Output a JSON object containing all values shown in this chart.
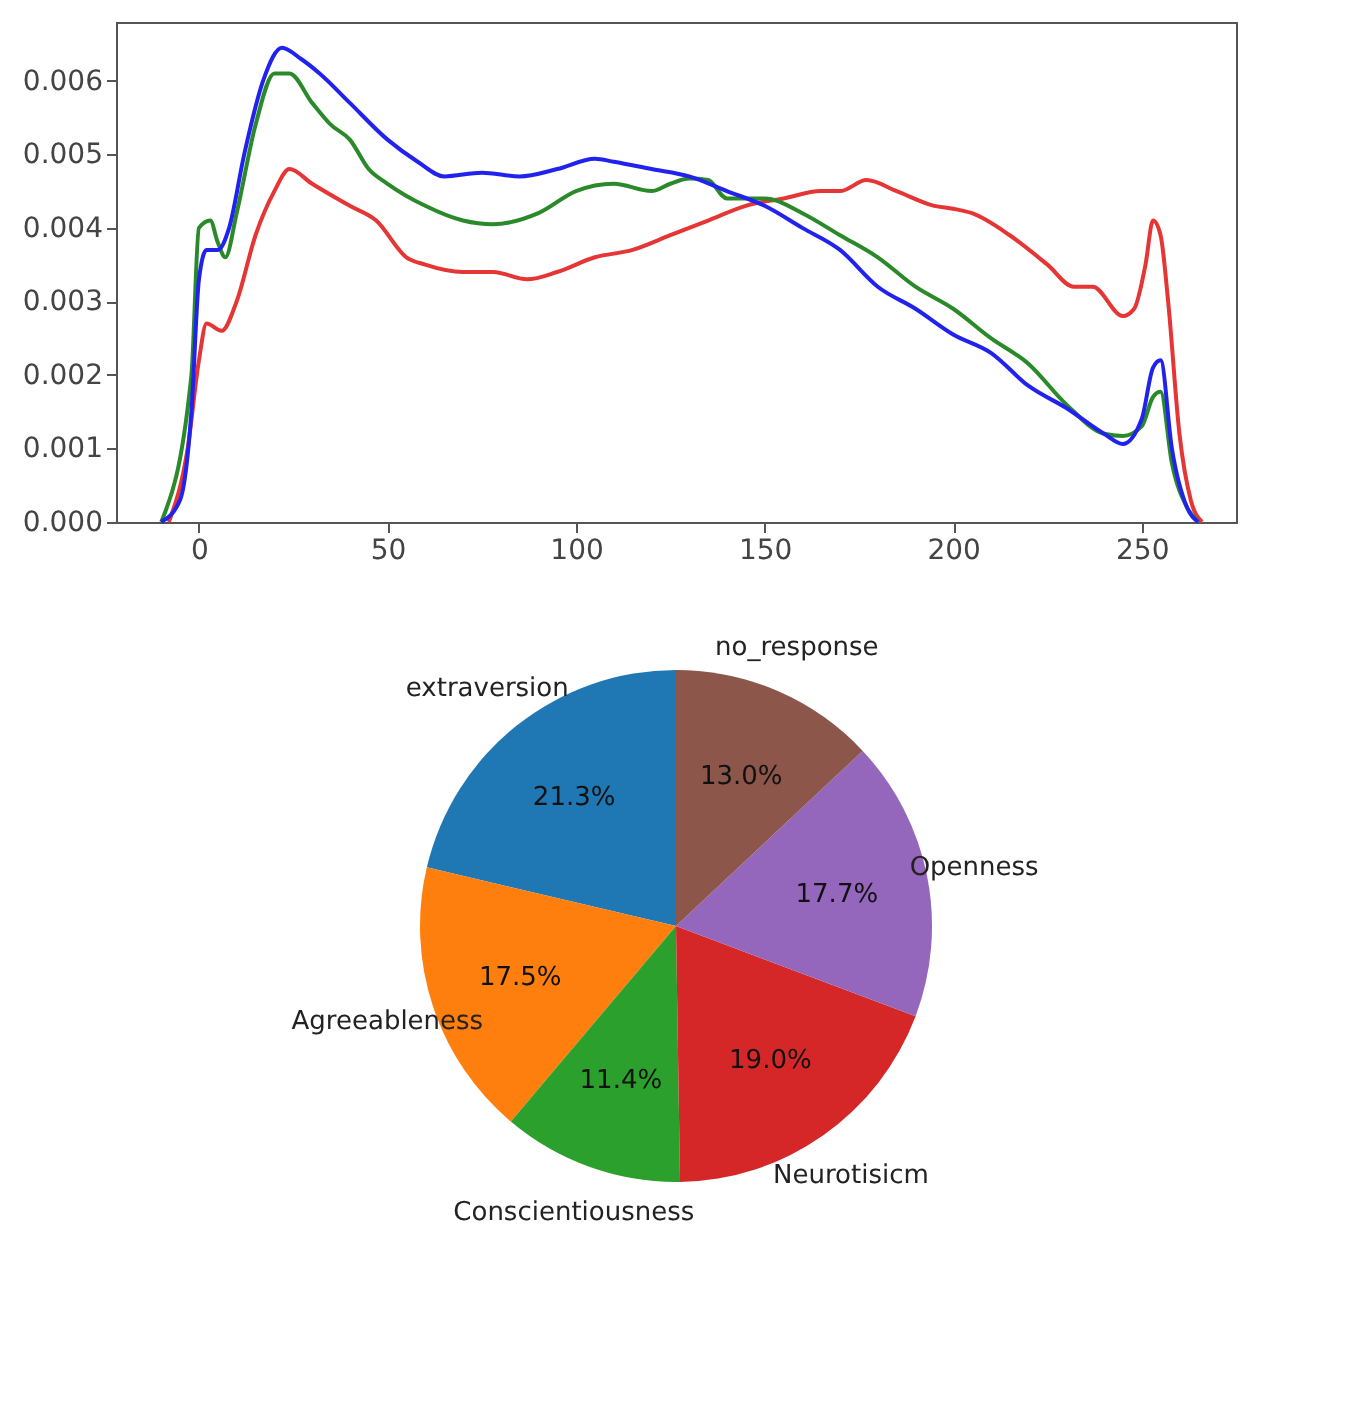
{
  "chart_data": [
    {
      "type": "line",
      "xlim": [
        -22,
        275
      ],
      "ylim": [
        0,
        0.0068
      ],
      "xticks": [
        0,
        50,
        100,
        150,
        200,
        250
      ],
      "yticks": [
        {
          "value": 0,
          "label": "0.000"
        },
        0.001,
        0.002,
        0.003,
        0.004,
        0.005,
        0.006
      ],
      "series": [
        {
          "color": "#e53535",
          "x": [
            -8,
            -3,
            0,
            2,
            6,
            10,
            15,
            20,
            24,
            30,
            40,
            47,
            55,
            60,
            70,
            78,
            87,
            95,
            105,
            115,
            125,
            135,
            145,
            155,
            165,
            170,
            177,
            185,
            195,
            200,
            205,
            215,
            225,
            232,
            237,
            245,
            248,
            251,
            253,
            255,
            257,
            260,
            263,
            266
          ],
          "values": [
            0,
            0.001,
            0.0022,
            0.0027,
            0.0026,
            0.003,
            0.0039,
            0.0045,
            0.0048,
            0.0046,
            0.0043,
            0.0041,
            0.0036,
            0.0035,
            0.0034,
            0.0034,
            0.0033,
            0.0034,
            0.0036,
            0.0037,
            0.0039,
            0.0041,
            0.0043,
            0.0044,
            0.0045,
            0.0045,
            0.00465,
            0.0045,
            0.0043,
            0.00426,
            0.0042,
            0.0039,
            0.0035,
            0.0032,
            0.0032,
            0.0028,
            0.0029,
            0.0035,
            0.0041,
            0.0039,
            0.003,
            0.0012,
            0.0003,
            0
          ]
        },
        {
          "color": "#2a8a2a",
          "x": [
            -10,
            -2,
            0,
            3,
            5,
            7,
            10,
            15,
            20,
            24,
            30,
            35,
            40,
            45,
            50,
            60,
            70,
            78,
            90,
            100,
            110,
            120,
            125,
            130,
            135,
            140,
            150,
            160,
            170,
            180,
            190,
            200,
            210,
            220,
            230,
            240,
            245,
            250,
            253,
            255,
            258,
            262,
            265
          ],
          "values": [
            0,
            0.002,
            0.004,
            0.0041,
            0.0038,
            0.0036,
            0.0042,
            0.0054,
            0.0061,
            0.0061,
            0.0057,
            0.0054,
            0.0052,
            0.0048,
            0.0046,
            0.0043,
            0.0041,
            0.00405,
            0.0042,
            0.0045,
            0.0046,
            0.0045,
            0.0046,
            0.00467,
            0.00465,
            0.0044,
            0.0044,
            0.0042,
            0.0039,
            0.0036,
            0.0032,
            0.0029,
            0.0025,
            0.00215,
            0.0016,
            0.0012,
            0.00117,
            0.0013,
            0.0017,
            0.00177,
            0.0008,
            0.0002,
            0
          ]
        },
        {
          "color": "#2222ee",
          "x": [
            -10,
            -5,
            -2,
            0,
            2,
            5,
            8,
            12,
            17,
            22,
            27,
            32,
            40,
            50,
            58,
            65,
            75,
            85,
            95,
            105,
            110,
            120,
            130,
            140,
            150,
            160,
            170,
            180,
            190,
            200,
            210,
            220,
            230,
            240,
            245,
            250,
            253,
            255,
            258,
            262,
            265
          ],
          "values": [
            0,
            0.0003,
            0.0015,
            0.0033,
            0.0037,
            0.0037,
            0.004,
            0.005,
            0.006,
            0.00645,
            0.0063,
            0.0061,
            0.0057,
            0.0052,
            0.0049,
            0.0047,
            0.00475,
            0.0047,
            0.0048,
            0.00494,
            0.0049,
            0.0048,
            0.0047,
            0.0045,
            0.0043,
            0.004,
            0.0037,
            0.0032,
            0.0029,
            0.00255,
            0.0023,
            0.00185,
            0.00155,
            0.0012,
            0.00106,
            0.0014,
            0.0021,
            0.0022,
            0.001,
            0.0002,
            0
          ]
        }
      ]
    },
    {
      "type": "pie",
      "categories": [
        "extraversion",
        "Agreeableness",
        "Conscientiousness",
        "Neurotisicm",
        "Openness",
        "no_response"
      ],
      "values": [
        21.3,
        17.5,
        11.4,
        19.0,
        17.7,
        13.0
      ],
      "colors": [
        "#1f77b4",
        "#ff7f0e",
        "#2ca02c",
        "#d62728",
        "#9467bd",
        "#8c564b"
      ],
      "value_labels": [
        "21.3%",
        "17.5%",
        "11.4%",
        "19.0%",
        "17.7%",
        "13.0%"
      ]
    }
  ]
}
